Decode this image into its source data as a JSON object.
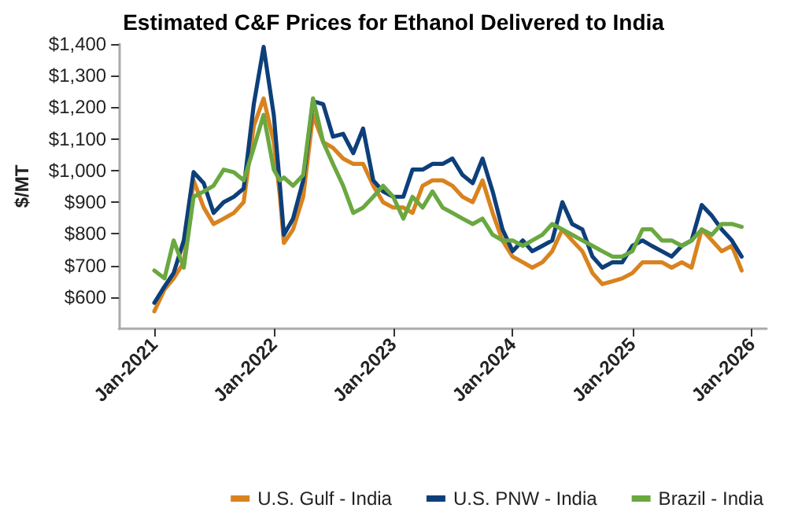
{
  "chart_data": {
    "type": "line",
    "title": "Estimated C&F Prices for Ethanol Delivered to India",
    "ylabel": "$/MT",
    "x": [
      "2021-01",
      "2021-02",
      "2021-03",
      "2021-04",
      "2021-05",
      "2021-06",
      "2021-07",
      "2021-08",
      "2021-09",
      "2021-10",
      "2021-11",
      "2021-12",
      "2022-01",
      "2022-01-20",
      "2022-02",
      "2022-03",
      "2022-04",
      "2022-05",
      "2022-06",
      "2022-07",
      "2022-08",
      "2022-09",
      "2022-10",
      "2022-11",
      "2022-12",
      "2023-01",
      "2023-02",
      "2023-03",
      "2023-04",
      "2023-05",
      "2023-06",
      "2023-07",
      "2023-08",
      "2023-09",
      "2023-10",
      "2023-11",
      "2023-12",
      "2024-01",
      "2024-02",
      "2024-03",
      "2024-04",
      "2024-05",
      "2024-06",
      "2024-07",
      "2024-08",
      "2024-09",
      "2024-10",
      "2024-11",
      "2024-12",
      "2025-01",
      "2025-02",
      "2025-03",
      "2025-04",
      "2025-05",
      "2025-06",
      "2025-07",
      "2025-08",
      "2025-09",
      "2025-10",
      "2025-11",
      "2025-12"
    ],
    "series": [
      {
        "name": "U.S. Gulf - India",
        "color": "#d9831f",
        "values": [
          555,
          624,
          659,
          710,
          969,
          883,
          831,
          848,
          866,
          900,
          1141,
          1228,
          1090,
          917,
          771,
          814,
          917,
          1176,
          1090,
          1072,
          1038,
          1021,
          1021,
          952,
          900,
          883,
          883,
          866,
          952,
          969,
          969,
          952,
          917,
          900,
          969,
          866,
          779,
          728,
          710,
          693,
          710,
          745,
          814,
          779,
          745,
          676,
          641,
          650,
          659,
          676,
          710,
          710,
          710,
          693,
          710,
          693,
          814,
          779,
          745,
          762,
          684
        ]
      },
      {
        "name": "U.S. PNW - India",
        "color": "#0d3f7a",
        "values": [
          582,
          633,
          676,
          779,
          995,
          960,
          866,
          900,
          917,
          943,
          1210,
          1391,
          1176,
          950,
          797,
          848,
          969,
          1219,
          1210,
          1107,
          1116,
          1055,
          1133,
          969,
          934,
          917,
          917,
          1003,
          1003,
          1021,
          1021,
          1038,
          986,
          960,
          1038,
          934,
          814,
          745,
          779,
          745,
          762,
          779,
          900,
          831,
          814,
          728,
          693,
          710,
          710,
          762,
          779,
          762,
          745,
          728,
          762,
          779,
          891,
          857,
          814,
          779,
          728
        ]
      },
      {
        "name": "Brazil - India",
        "color": "#6aa840",
        "values": [
          684,
          659,
          779,
          693,
          917,
          934,
          952,
          1003,
          995,
          969,
          1072,
          1176,
          1003,
          969,
          978,
          952,
          986,
          1228,
          1090,
          1021,
          952,
          866,
          883,
          917,
          952,
          917,
          848,
          917,
          883,
          934,
          883,
          866,
          848,
          831,
          848,
          797,
          779,
          779,
          762,
          779,
          797,
          831,
          814,
          797,
          779,
          762,
          745,
          728,
          728,
          745,
          814,
          814,
          779,
          779,
          762,
          779,
          814,
          797,
          831,
          831,
          822
        ]
      }
    ],
    "xlim": [
      "2020-09-15",
      "2026-02-15"
    ],
    "xticks": [
      {
        "value": "2021-01",
        "label": "Jan-2021"
      },
      {
        "value": "2022-01",
        "label": "Jan-2022"
      },
      {
        "value": "2023-01",
        "label": "Jan-2023"
      },
      {
        "value": "2024-01",
        "label": "Jan-2024"
      },
      {
        "value": "2025-01",
        "label": "Jan-2025"
      },
      {
        "value": "2026-01",
        "label": "Jan-2026"
      }
    ],
    "ylim": [
      500,
      1400
    ],
    "yticks": [
      {
        "value": 600,
        "label": "$600"
      },
      {
        "value": 700,
        "label": "$700"
      },
      {
        "value": 800,
        "label": "$800"
      },
      {
        "value": 900,
        "label": "$900"
      },
      {
        "value": 1000,
        "label": "$1,000"
      },
      {
        "value": 1100,
        "label": "$1,100"
      },
      {
        "value": 1200,
        "label": "$1,200"
      },
      {
        "value": 1300,
        "label": "$1,300"
      },
      {
        "value": 1400,
        "label": "$1,400"
      }
    ],
    "grid": false,
    "legend": "bottom",
    "marker": "none",
    "line_style": "solid"
  }
}
